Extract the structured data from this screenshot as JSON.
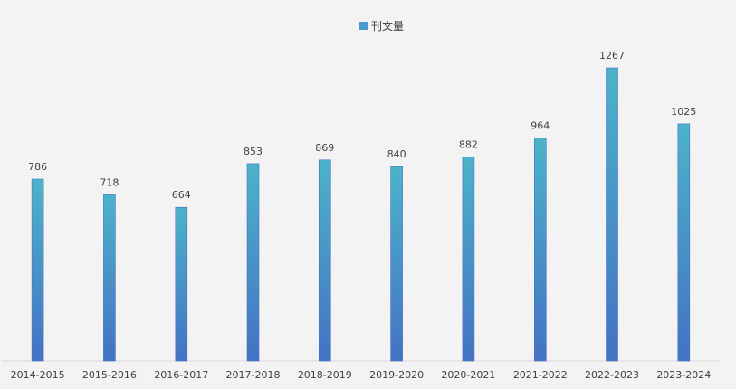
{
  "chart_data": {
    "type": "bar",
    "categories": [
      "2014-2015",
      "2015-2016",
      "2016-2017",
      "2017-2018",
      "2018-2019",
      "2019-2020",
      "2020-2021",
      "2021-2022",
      "2022-2023",
      "2023-2024"
    ],
    "series": [
      {
        "name": "刊文量",
        "values": [
          786,
          718,
          664,
          853,
          869,
          840,
          882,
          964,
          1267,
          1025
        ]
      }
    ],
    "data_labels": [
      "786",
      "718",
      "664",
      "853",
      "869",
      "840",
      "882",
      "964",
      "1267",
      "1025"
    ],
    "legend_position": "top-center",
    "grid": false,
    "y_axis_visible": false,
    "ylim": [
      0,
      1300
    ]
  },
  "colors": {
    "background": "#f3f3f3",
    "bar_top": "#4cb3c9",
    "bar_bottom": "#4472c4",
    "legend_swatch": "#4a9ccf",
    "text": "#404040",
    "axis_line": "#d9d9d9"
  }
}
